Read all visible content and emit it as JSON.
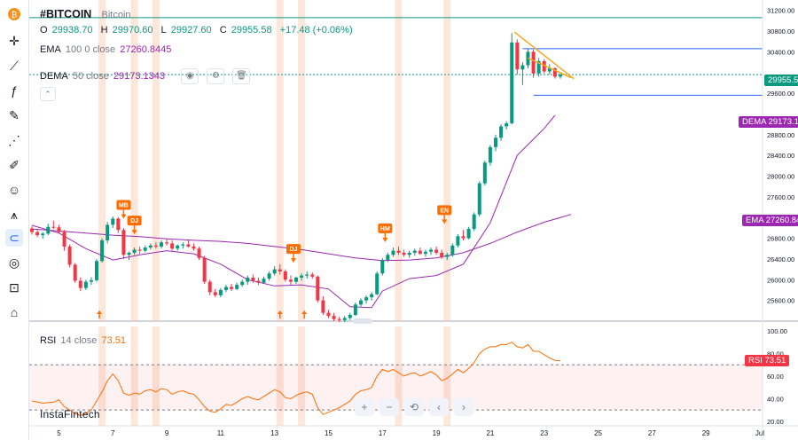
{
  "symbol": {
    "ticker": "#BITCOIN",
    "name": "Bitcoin",
    "icon": "bitcoin-icon",
    "icon_color": "#f7931a"
  },
  "ohlc": {
    "o_label": "O",
    "o": "29938.70",
    "h_label": "H",
    "h": "29970.60",
    "l_label": "L",
    "l": "29927.60",
    "c_label": "C",
    "c": "29955.58",
    "change": "+17.48 (+0.06%)"
  },
  "ema": {
    "label": "EMA",
    "params": "100 0 close",
    "value": "27260.8445",
    "tag": "EMA",
    "tag_value": "27260.84",
    "color": "#9c27b0"
  },
  "dema": {
    "label": "DEMA",
    "params": "50 close",
    "value": "29173.1343",
    "tag": "DEMA",
    "tag_value": "29173.13",
    "color": "#9c27b0"
  },
  "rsi": {
    "label": "RSI",
    "params": "14 close",
    "value": "73.51",
    "tag": "RSI",
    "tag_value": "73.51",
    "color": "#ff6d00"
  },
  "last_price": "29955.58",
  "watermark": "InstaFintech",
  "toolbar_icons": [
    "crosshair-icon",
    "trend-line-icon",
    "fib-icon",
    "brush-icon",
    "text-icon",
    "pattern-icon",
    "emoji-icon",
    "measure-icon",
    "magnet-icon",
    "eye-icon",
    "lock-icon",
    "trash-icon"
  ],
  "zoom_controls": [
    "+",
    "−",
    "⟲",
    "‹",
    "›"
  ],
  "colors": {
    "up": "#089981",
    "down": "#f23645",
    "highlight": "#f9c9ae",
    "support": "#2962ff",
    "resistance": "#089981",
    "triangle": "#f5a623"
  },
  "chart_data": {
    "type": "candlestick",
    "price_axis": {
      "ylim": [
        25200,
        31400
      ],
      "ticks": [
        31200,
        30800,
        30400,
        29600,
        28800,
        28400,
        28000,
        27600,
        27200,
        26800,
        26400,
        26000,
        25600
      ]
    },
    "rsi_axis": {
      "ylim": [
        16,
        104
      ],
      "ticks": [
        100.0,
        80.0,
        60.0,
        40.0,
        20.0
      ],
      "overbought": 70,
      "oversold": 30
    },
    "x_ticks": [
      "5",
      "7",
      "9",
      "11",
      "13",
      "15",
      "17",
      "19",
      "21",
      "23",
      "25",
      "27",
      "29",
      "Jul"
    ],
    "x_tick_days": [
      5,
      7,
      9,
      11,
      13,
      15,
      17,
      19,
      21,
      23,
      25,
      27,
      29,
      31
    ],
    "horizontal_lines": [
      {
        "price": 31060,
        "color": "#089981"
      },
      {
        "price": 29960,
        "color": "#089981",
        "dotted": true
      },
      {
        "price": 30460,
        "color": "#2962ff"
      },
      {
        "price": 29560,
        "color": "#2962ff"
      }
    ],
    "triangle_line": [
      {
        "day": 21.9,
        "price": 30780
      },
      {
        "day": 24.1,
        "price": 29880
      }
    ],
    "ema_series": [
      [
        4,
        26980
      ],
      [
        5,
        26940
      ],
      [
        6,
        26900
      ],
      [
        7,
        26860
      ],
      [
        8,
        26830
      ],
      [
        9,
        26790
      ],
      [
        10,
        26760
      ],
      [
        11,
        26740
      ],
      [
        12,
        26700
      ],
      [
        13,
        26640
      ],
      [
        14,
        26580
      ],
      [
        15,
        26500
      ],
      [
        16,
        26420
      ],
      [
        17,
        26370
      ],
      [
        18,
        26380
      ],
      [
        19,
        26420
      ],
      [
        20,
        26520
      ],
      [
        21,
        26700
      ],
      [
        22,
        26920
      ],
      [
        23,
        27110
      ],
      [
        24,
        27260
      ]
    ],
    "dema_series": [
      [
        4,
        27050
      ],
      [
        5,
        26900
      ],
      [
        6,
        26600
      ],
      [
        7,
        26380
      ],
      [
        8,
        26480
      ],
      [
        9,
        26560
      ],
      [
        10,
        26500
      ],
      [
        11,
        26300
      ],
      [
        12,
        26000
      ],
      [
        13,
        25880
      ],
      [
        14,
        25900
      ],
      [
        15,
        25820
      ],
      [
        15.8,
        25480
      ],
      [
        16.6,
        25460
      ],
      [
        17,
        25780
      ],
      [
        18,
        26020
      ],
      [
        19,
        26080
      ],
      [
        20,
        26300
      ],
      [
        21,
        27100
      ],
      [
        22,
        28400
      ],
      [
        23,
        28920
      ],
      [
        23.4,
        29173
      ]
    ],
    "candles": [
      [
        4.0,
        26990,
        27030,
        26870,
        26920
      ],
      [
        4.2,
        26920,
        26960,
        26820,
        26860
      ],
      [
        4.4,
        26860,
        26920,
        26790,
        26890
      ],
      [
        4.6,
        26890,
        27080,
        26860,
        27020
      ],
      [
        4.8,
        27020,
        27140,
        26980,
        27010
      ],
      [
        5.0,
        27010,
        27060,
        26900,
        26920
      ],
      [
        5.2,
        26920,
        26960,
        26560,
        26640
      ],
      [
        5.4,
        26640,
        26680,
        26240,
        26290
      ],
      [
        5.6,
        26290,
        26320,
        25940,
        25980
      ],
      [
        5.8,
        25980,
        26040,
        25780,
        25840
      ],
      [
        6.0,
        25840,
        26000,
        25800,
        25960
      ],
      [
        6.2,
        25960,
        26050,
        25900,
        25990
      ],
      [
        6.4,
        25990,
        26400,
        25960,
        26360
      ],
      [
        6.6,
        26360,
        26800,
        26330,
        26760
      ],
      [
        6.8,
        26760,
        27120,
        26700,
        27060
      ],
      [
        7.0,
        27060,
        27220,
        27000,
        27180
      ],
      [
        7.2,
        27180,
        27210,
        26900,
        26960
      ],
      [
        7.4,
        26960,
        27000,
        26400,
        26480
      ],
      [
        7.6,
        26480,
        26540,
        26380,
        26520
      ],
      [
        7.8,
        26520,
        26620,
        26480,
        26580
      ],
      [
        8.0,
        26580,
        26640,
        26500,
        26560
      ],
      [
        8.2,
        26560,
        26660,
        26530,
        26620
      ],
      [
        8.4,
        26620,
        26700,
        26580,
        26660
      ],
      [
        8.6,
        26660,
        26720,
        26600,
        26640
      ],
      [
        8.8,
        26640,
        26760,
        26600,
        26720
      ],
      [
        9.0,
        26720,
        26800,
        26660,
        26700
      ],
      [
        9.2,
        26700,
        26760,
        26560,
        26600
      ],
      [
        9.4,
        26600,
        26680,
        26560,
        26660
      ],
      [
        9.6,
        26660,
        26720,
        26600,
        26680
      ],
      [
        9.8,
        26680,
        26760,
        26620,
        26640
      ],
      [
        10.0,
        26640,
        26700,
        26560,
        26600
      ],
      [
        10.2,
        26600,
        26640,
        26380,
        26420
      ],
      [
        10.4,
        26420,
        26460,
        25920,
        25960
      ],
      [
        10.6,
        25960,
        26000,
        25700,
        25760
      ],
      [
        10.8,
        25760,
        25820,
        25660,
        25700
      ],
      [
        11.0,
        25700,
        25840,
        25660,
        25800
      ],
      [
        11.2,
        25800,
        25900,
        25760,
        25860
      ],
      [
        11.4,
        25860,
        25920,
        25780,
        25820
      ],
      [
        11.6,
        25820,
        25940,
        25800,
        25900
      ],
      [
        11.8,
        25900,
        26000,
        25860,
        25960
      ],
      [
        12.0,
        25960,
        26080,
        25900,
        26040
      ],
      [
        12.2,
        26040,
        26100,
        25940,
        25980
      ],
      [
        12.4,
        25980,
        26040,
        25900,
        25940
      ],
      [
        12.6,
        25940,
        26060,
        25920,
        26020
      ],
      [
        12.8,
        26020,
        26160,
        25980,
        26120
      ],
      [
        13.0,
        26120,
        26260,
        26080,
        26200
      ],
      [
        13.2,
        26200,
        26300,
        26100,
        26160
      ],
      [
        13.4,
        26160,
        26200,
        25960,
        26000
      ],
      [
        13.6,
        26000,
        26080,
        25900,
        25960
      ],
      [
        13.8,
        25960,
        26060,
        25920,
        26040
      ],
      [
        14.0,
        26040,
        26120,
        25980,
        26080
      ],
      [
        14.2,
        26080,
        26160,
        26020,
        26100
      ],
      [
        14.4,
        26100,
        26140,
        26020,
        26060
      ],
      [
        14.6,
        26060,
        26080,
        25560,
        25600
      ],
      [
        14.8,
        25600,
        25680,
        25320,
        25360
      ],
      [
        15.0,
        25360,
        25420,
        25260,
        25300
      ],
      [
        15.2,
        25300,
        25360,
        25200,
        25240
      ],
      [
        15.4,
        25240,
        25280,
        25180,
        25220
      ],
      [
        15.6,
        25220,
        25300,
        25180,
        25260
      ],
      [
        15.8,
        25260,
        25360,
        25220,
        25320
      ],
      [
        16.0,
        25320,
        25560,
        25300,
        25520
      ],
      [
        16.2,
        25520,
        25640,
        25480,
        25600
      ],
      [
        16.4,
        25600,
        25700,
        25540,
        25660
      ],
      [
        16.6,
        25660,
        25760,
        25600,
        25720
      ],
      [
        16.8,
        25720,
        26160,
        25700,
        26120
      ],
      [
        17.0,
        26120,
        26420,
        26080,
        26380
      ],
      [
        17.2,
        26380,
        26520,
        26340,
        26480
      ],
      [
        17.4,
        26480,
        26620,
        26440,
        26560
      ],
      [
        17.6,
        26560,
        26640,
        26480,
        26520
      ],
      [
        17.8,
        26520,
        26580,
        26440,
        26480
      ],
      [
        18.0,
        26480,
        26560,
        26420,
        26520
      ],
      [
        18.2,
        26520,
        26600,
        26460,
        26560
      ],
      [
        18.4,
        26560,
        26620,
        26480,
        26500
      ],
      [
        18.6,
        26500,
        26580,
        26440,
        26540
      ],
      [
        18.8,
        26540,
        26620,
        26480,
        26580
      ],
      [
        19.0,
        26580,
        26640,
        26480,
        26520
      ],
      [
        19.2,
        26520,
        26580,
        26400,
        26440
      ],
      [
        19.4,
        26440,
        26520,
        26380,
        26480
      ],
      [
        19.6,
        26480,
        26700,
        26440,
        26660
      ],
      [
        19.8,
        26660,
        26880,
        26620,
        26840
      ],
      [
        20.0,
        26840,
        26960,
        26760,
        26800
      ],
      [
        20.2,
        26800,
        27020,
        26780,
        26980
      ],
      [
        20.4,
        26980,
        27300,
        26940,
        27260
      ],
      [
        20.6,
        27260,
        27900,
        27220,
        27860
      ],
      [
        20.8,
        27860,
        28300,
        27820,
        28260
      ],
      [
        21.0,
        28260,
        28600,
        28200,
        28560
      ],
      [
        21.2,
        28560,
        28800,
        28480,
        28740
      ],
      [
        21.4,
        28740,
        29000,
        28680,
        28960
      ],
      [
        21.6,
        28960,
        29060,
        28900,
        29020
      ],
      [
        21.8,
        29020,
        30760,
        29000,
        30580
      ],
      [
        22.0,
        30580,
        30640,
        29960,
        30060
      ],
      [
        22.2,
        30060,
        30200,
        29760,
        30140
      ],
      [
        22.4,
        30140,
        30460,
        30080,
        30400
      ],
      [
        22.6,
        30400,
        30440,
        29900,
        29980
      ],
      [
        22.8,
        29980,
        30280,
        29920,
        30220
      ],
      [
        23.0,
        30220,
        30260,
        29980,
        30020
      ],
      [
        23.2,
        30020,
        30160,
        29960,
        30080
      ],
      [
        23.4,
        30080,
        30100,
        29880,
        29920
      ],
      [
        23.6,
        29920,
        29990,
        29880,
        29956
      ]
    ],
    "highlight_days": [
      6.6,
      7.8,
      8.6,
      13.2,
      14.0,
      17.6,
      19.4
    ],
    "signals": [
      {
        "label": "MB",
        "day": 7.4,
        "price": 27400,
        "dir": "down"
      },
      {
        "label": "DJ",
        "day": 7.8,
        "price": 27100,
        "dir": "down"
      },
      {
        "label": "DJ",
        "day": 13.7,
        "price": 26550,
        "dir": "down"
      },
      {
        "label": "HM",
        "day": 17.1,
        "price": 26950,
        "dir": "down"
      },
      {
        "label": "EN",
        "day": 19.3,
        "price": 27300,
        "dir": "down"
      }
    ],
    "up_arrows": [
      {
        "day": 6.5
      },
      {
        "day": 13.2
      },
      {
        "day": 14.1
      }
    ],
    "rsi_series": [
      [
        4,
        38
      ],
      [
        4.4,
        36
      ],
      [
        4.8,
        37
      ],
      [
        5.0,
        39
      ],
      [
        5.2,
        33
      ],
      [
        5.4,
        30
      ],
      [
        5.6,
        27
      ],
      [
        5.8,
        25
      ],
      [
        6.0,
        27
      ],
      [
        6.2,
        30
      ],
      [
        6.4,
        38
      ],
      [
        6.6,
        46
      ],
      [
        6.8,
        56
      ],
      [
        7.0,
        62
      ],
      [
        7.2,
        56
      ],
      [
        7.4,
        45
      ],
      [
        7.6,
        43
      ],
      [
        7.8,
        45
      ],
      [
        8.0,
        44
      ],
      [
        8.2,
        47
      ],
      [
        8.4,
        48
      ],
      [
        8.6,
        46
      ],
      [
        8.8,
        49
      ],
      [
        9.0,
        48
      ],
      [
        9.2,
        44
      ],
      [
        9.4,
        46
      ],
      [
        9.6,
        47
      ],
      [
        9.8,
        45
      ],
      [
        10.0,
        44
      ],
      [
        10.2,
        39
      ],
      [
        10.4,
        33
      ],
      [
        10.6,
        29
      ],
      [
        10.8,
        28
      ],
      [
        11.0,
        31
      ],
      [
        11.2,
        35
      ],
      [
        11.4,
        34
      ],
      [
        11.6,
        37
      ],
      [
        11.8,
        40
      ],
      [
        12.0,
        42
      ],
      [
        12.2,
        40
      ],
      [
        12.4,
        39
      ],
      [
        12.6,
        42
      ],
      [
        12.8,
        45
      ],
      [
        13.0,
        48
      ],
      [
        13.2,
        46
      ],
      [
        13.4,
        41
      ],
      [
        13.6,
        40
      ],
      [
        13.8,
        43
      ],
      [
        14.0,
        45
      ],
      [
        14.2,
        46
      ],
      [
        14.4,
        44
      ],
      [
        14.6,
        32
      ],
      [
        14.8,
        26
      ],
      [
        15.0,
        28
      ],
      [
        15.2,
        30
      ],
      [
        15.4,
        32
      ],
      [
        15.6,
        35
      ],
      [
        15.8,
        38
      ],
      [
        16.0,
        44
      ],
      [
        16.2,
        47
      ],
      [
        16.4,
        48
      ],
      [
        16.6,
        50
      ],
      [
        16.8,
        60
      ],
      [
        17.0,
        66
      ],
      [
        17.2,
        64
      ],
      [
        17.4,
        66
      ],
      [
        17.6,
        63
      ],
      [
        17.8,
        60
      ],
      [
        18.0,
        62
      ],
      [
        18.2,
        63
      ],
      [
        18.4,
        60
      ],
      [
        18.6,
        62
      ],
      [
        18.8,
        64
      ],
      [
        19.0,
        61
      ],
      [
        19.2,
        56
      ],
      [
        19.4,
        58
      ],
      [
        19.6,
        62
      ],
      [
        19.8,
        66
      ],
      [
        20.0,
        63
      ],
      [
        20.2,
        67
      ],
      [
        20.4,
        72
      ],
      [
        20.6,
        80
      ],
      [
        20.8,
        84
      ],
      [
        21.0,
        86
      ],
      [
        21.2,
        86
      ],
      [
        21.4,
        88
      ],
      [
        21.6,
        88
      ],
      [
        21.8,
        90
      ],
      [
        22.0,
        86
      ],
      [
        22.2,
        85
      ],
      [
        22.4,
        88
      ],
      [
        22.6,
        82
      ],
      [
        22.8,
        82
      ],
      [
        23.0,
        79
      ],
      [
        23.2,
        76
      ],
      [
        23.4,
        74
      ],
      [
        23.6,
        73.5
      ]
    ]
  }
}
